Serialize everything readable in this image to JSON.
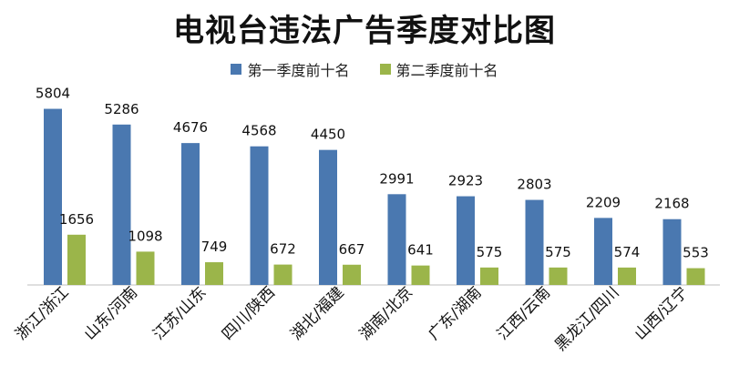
{
  "chart_data": {
    "type": "bar",
    "title": "电视台违法广告季度对比图",
    "categories": [
      "浙江/浙江",
      "山东/河南",
      "江苏/山东",
      "四川/陕西",
      "湖北/福建",
      "湖南/北京",
      "广东/湖南",
      "江西/云南",
      "黑龙江/四川",
      "山西/辽宁"
    ],
    "series": [
      {
        "name": "第一季度前十名",
        "color": "#4a78b0",
        "values": [
          5804,
          5286,
          4676,
          4568,
          4450,
          2991,
          2923,
          2803,
          2209,
          2168
        ]
      },
      {
        "name": "第二季度前十名",
        "color": "#9bb54a",
        "values": [
          1656,
          1098,
          749,
          672,
          667,
          641,
          575,
          575,
          574,
          553
        ]
      }
    ],
    "ylim": [
      0,
      6000
    ],
    "legend_position": "top-center",
    "grid": false
  }
}
